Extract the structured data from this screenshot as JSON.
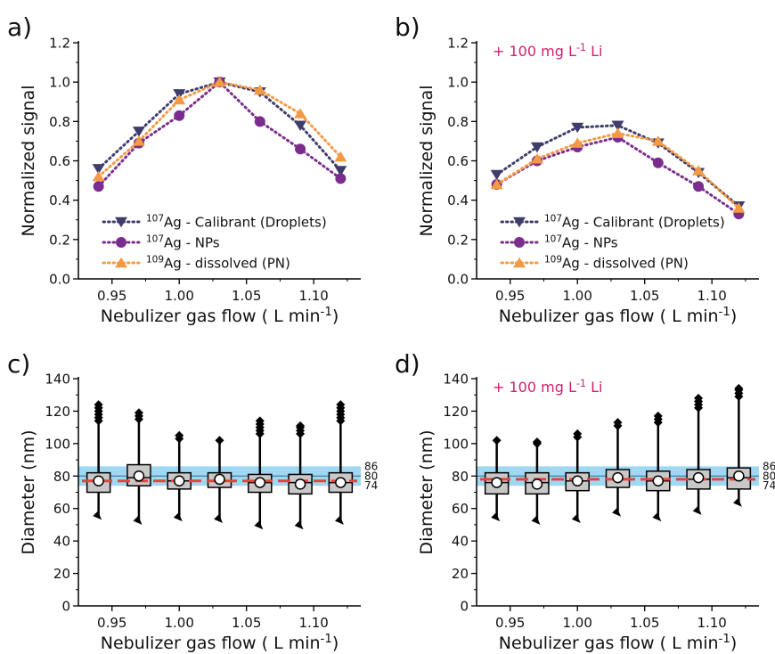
{
  "colors": {
    "droplets": "#3f3d6b",
    "nps": "#7b2d8e",
    "dissolved": "#f39a45",
    "band": "#8fd0ef",
    "median": "#e8423a",
    "box": "#c8c8c8",
    "annotation": "#d21f6e"
  },
  "chart_data": [
    {
      "type": "line",
      "panel_label": "a)",
      "annotation": "",
      "xlabel": "Nebulizer gas flow ( L min⁻¹)",
      "ylabel": "Normalized signal",
      "xlim": [
        0.925,
        1.135
      ],
      "ylim": [
        0,
        1.2
      ],
      "xticks": [
        0.95,
        1.0,
        1.05,
        1.1
      ],
      "xtick_labels": [
        "0.95",
        "1.00",
        "1.05",
        "1.10"
      ],
      "yticks": [
        0,
        0.2,
        0.4,
        0.6,
        0.8,
        1.0,
        1.2
      ],
      "ytick_labels": [
        "0.0",
        "0.2",
        "0.4",
        "0.6",
        "0.8",
        "1.0",
        "1.2"
      ],
      "legend_position": "bottom-center",
      "x": [
        0.94,
        0.97,
        1.0,
        1.03,
        1.06,
        1.09,
        1.12
      ],
      "series": [
        {
          "iso": "107",
          "label": "Ag - Calibrant (Droplets)",
          "marker": "triangle-down",
          "color_key": "droplets",
          "values": [
            0.56,
            0.75,
            0.94,
            1.0,
            0.95,
            0.78,
            0.55
          ]
        },
        {
          "iso": "107",
          "label": "Ag - NPs",
          "marker": "circle",
          "color_key": "nps",
          "values": [
            0.47,
            0.69,
            0.83,
            1.0,
            0.8,
            0.66,
            0.51
          ]
        },
        {
          "iso": "109",
          "label": "Ag - dissolved (PN)",
          "marker": "triangle-up",
          "color_key": "dissolved",
          "values": [
            0.52,
            0.7,
            0.91,
            1.0,
            0.96,
            0.84,
            0.62
          ]
        }
      ]
    },
    {
      "type": "line",
      "panel_label": "b)",
      "annotation": "+ 100 mg L⁻¹ Li",
      "xlabel": "Nebulizer gas flow ( L min⁻¹)",
      "ylabel": "Normalized signal",
      "xlim": [
        0.925,
        1.135
      ],
      "ylim": [
        0,
        1.2
      ],
      "xticks": [
        0.95,
        1.0,
        1.05,
        1.1
      ],
      "xtick_labels": [
        "0.95",
        "1.00",
        "1.05",
        "1.10"
      ],
      "yticks": [
        0,
        0.2,
        0.4,
        0.6,
        0.8,
        1.0,
        1.2
      ],
      "ytick_labels": [
        "0.0",
        "0.2",
        "0.4",
        "0.6",
        "0.8",
        "1.0",
        "1.2"
      ],
      "legend_position": "bottom-center",
      "x": [
        0.94,
        0.97,
        1.0,
        1.03,
        1.06,
        1.09,
        1.12
      ],
      "series": [
        {
          "iso": "107",
          "label": "Ag - Calibrant (Droplets)",
          "marker": "triangle-down",
          "color_key": "droplets",
          "values": [
            0.53,
            0.67,
            0.77,
            0.78,
            0.69,
            0.54,
            0.37
          ]
        },
        {
          "iso": "107",
          "label": "Ag - NPs",
          "marker": "circle",
          "color_key": "nps",
          "values": [
            0.48,
            0.6,
            0.67,
            0.72,
            0.59,
            0.47,
            0.33
          ]
        },
        {
          "iso": "109",
          "label": "Ag - dissolved (PN)",
          "marker": "triangle-up",
          "color_key": "dissolved",
          "values": [
            0.48,
            0.61,
            0.69,
            0.74,
            0.7,
            0.55,
            0.36
          ]
        }
      ]
    },
    {
      "type": "box",
      "panel_label": "c)",
      "annotation": "",
      "xlabel": "Nebulizer gas flow ( L min⁻¹)",
      "ylabel": "Diameter (nm)",
      "xlim": [
        0.925,
        1.135
      ],
      "ylim": [
        0,
        140
      ],
      "xticks": [
        0.95,
        1.0,
        1.05,
        1.1
      ],
      "xtick_labels": [
        "0.95",
        "1.00",
        "1.05",
        "1.10"
      ],
      "yticks": [
        0,
        20,
        40,
        60,
        80,
        100,
        120,
        140
      ],
      "ytick_labels": [
        "0",
        "20",
        "40",
        "60",
        "80",
        "100",
        "120",
        "140"
      ],
      "band": {
        "low": 74,
        "high": 86,
        "center": 80
      },
      "band_labels": [
        "86",
        "80",
        "74"
      ],
      "median_line": 77,
      "x": [
        0.94,
        0.97,
        1.0,
        1.03,
        1.06,
        1.09,
        1.12
      ],
      "boxes": [
        {
          "q1": 70,
          "q3": 82,
          "median": 77,
          "mean": 77,
          "whisker_low": 55,
          "whisker_high": 112,
          "outliers": [
            114,
            116,
            118,
            120,
            122,
            124
          ]
        },
        {
          "q1": 74,
          "q3": 87,
          "median": 79,
          "mean": 80,
          "whisker_low": 52,
          "whisker_high": 113,
          "outliers": [
            115,
            117,
            119
          ]
        },
        {
          "q1": 72,
          "q3": 82,
          "median": 77,
          "mean": 77,
          "whisker_low": 54,
          "whisker_high": 102,
          "outliers": [
            103,
            105
          ]
        },
        {
          "q1": 73,
          "q3": 82,
          "median": 77,
          "mean": 78,
          "whisker_low": 53,
          "whisker_high": 101,
          "outliers": [
            102
          ]
        },
        {
          "q1": 70,
          "q3": 81,
          "median": 76,
          "mean": 76,
          "whisker_low": 49,
          "whisker_high": 104,
          "outliers": [
            106,
            108,
            110,
            112,
            114
          ]
        },
        {
          "q1": 69,
          "q3": 81,
          "median": 76,
          "mean": 75,
          "whisker_low": 49,
          "whisker_high": 104,
          "outliers": [
            106,
            108,
            110,
            111
          ]
        },
        {
          "q1": 70,
          "q3": 82,
          "median": 76,
          "mean": 76,
          "whisker_low": 52,
          "whisker_high": 112,
          "outliers": [
            114,
            116,
            118,
            120,
            122,
            124
          ]
        }
      ]
    },
    {
      "type": "box",
      "panel_label": "d)",
      "annotation": "+ 100 mg L⁻¹ Li",
      "xlabel": "Nebulizer gas flow ( L min⁻¹)",
      "ylabel": "Diameter (nm)",
      "xlim": [
        0.925,
        1.135
      ],
      "ylim": [
        0,
        140
      ],
      "xticks": [
        0.95,
        1.0,
        1.05,
        1.1
      ],
      "xtick_labels": [
        "0.95",
        "1.00",
        "1.05",
        "1.10"
      ],
      "yticks": [
        0,
        20,
        40,
        60,
        80,
        100,
        120,
        140
      ],
      "ytick_labels": [
        "0",
        "20",
        "40",
        "60",
        "80",
        "100",
        "120",
        "140"
      ],
      "band": {
        "low": 74,
        "high": 86,
        "center": 80
      },
      "band_labels": [
        "86",
        "80",
        "74"
      ],
      "median_line": 78,
      "x": [
        0.94,
        0.97,
        1.0,
        1.03,
        1.06,
        1.09,
        1.12
      ],
      "boxes": [
        {
          "q1": 69,
          "q3": 82,
          "median": 76,
          "mean": 76,
          "whisker_low": 54,
          "whisker_high": 101,
          "outliers": [
            102
          ]
        },
        {
          "q1": 69,
          "q3": 82,
          "median": 76,
          "mean": 75,
          "whisker_low": 52,
          "whisker_high": 99,
          "outliers": [
            100,
            101
          ]
        },
        {
          "q1": 71,
          "q3": 82,
          "median": 77,
          "mean": 77,
          "whisker_low": 53,
          "whisker_high": 103,
          "outliers": [
            104,
            106
          ]
        },
        {
          "q1": 73,
          "q3": 84,
          "median": 78,
          "mean": 79,
          "whisker_low": 57,
          "whisker_high": 109,
          "outliers": [
            111,
            113
          ]
        },
        {
          "q1": 71,
          "q3": 83,
          "median": 77,
          "mean": 77,
          "whisker_low": 54,
          "whisker_high": 111,
          "outliers": [
            113,
            115,
            117
          ]
        },
        {
          "q1": 72,
          "q3": 84,
          "median": 78,
          "mean": 79,
          "whisker_low": 58,
          "whisker_high": 120,
          "outliers": [
            122,
            124,
            126,
            128
          ]
        },
        {
          "q1": 72,
          "q3": 85,
          "median": 79,
          "mean": 80,
          "whisker_low": 63,
          "whisker_high": 127,
          "outliers": [
            129,
            131,
            133,
            134
          ]
        }
      ]
    }
  ]
}
